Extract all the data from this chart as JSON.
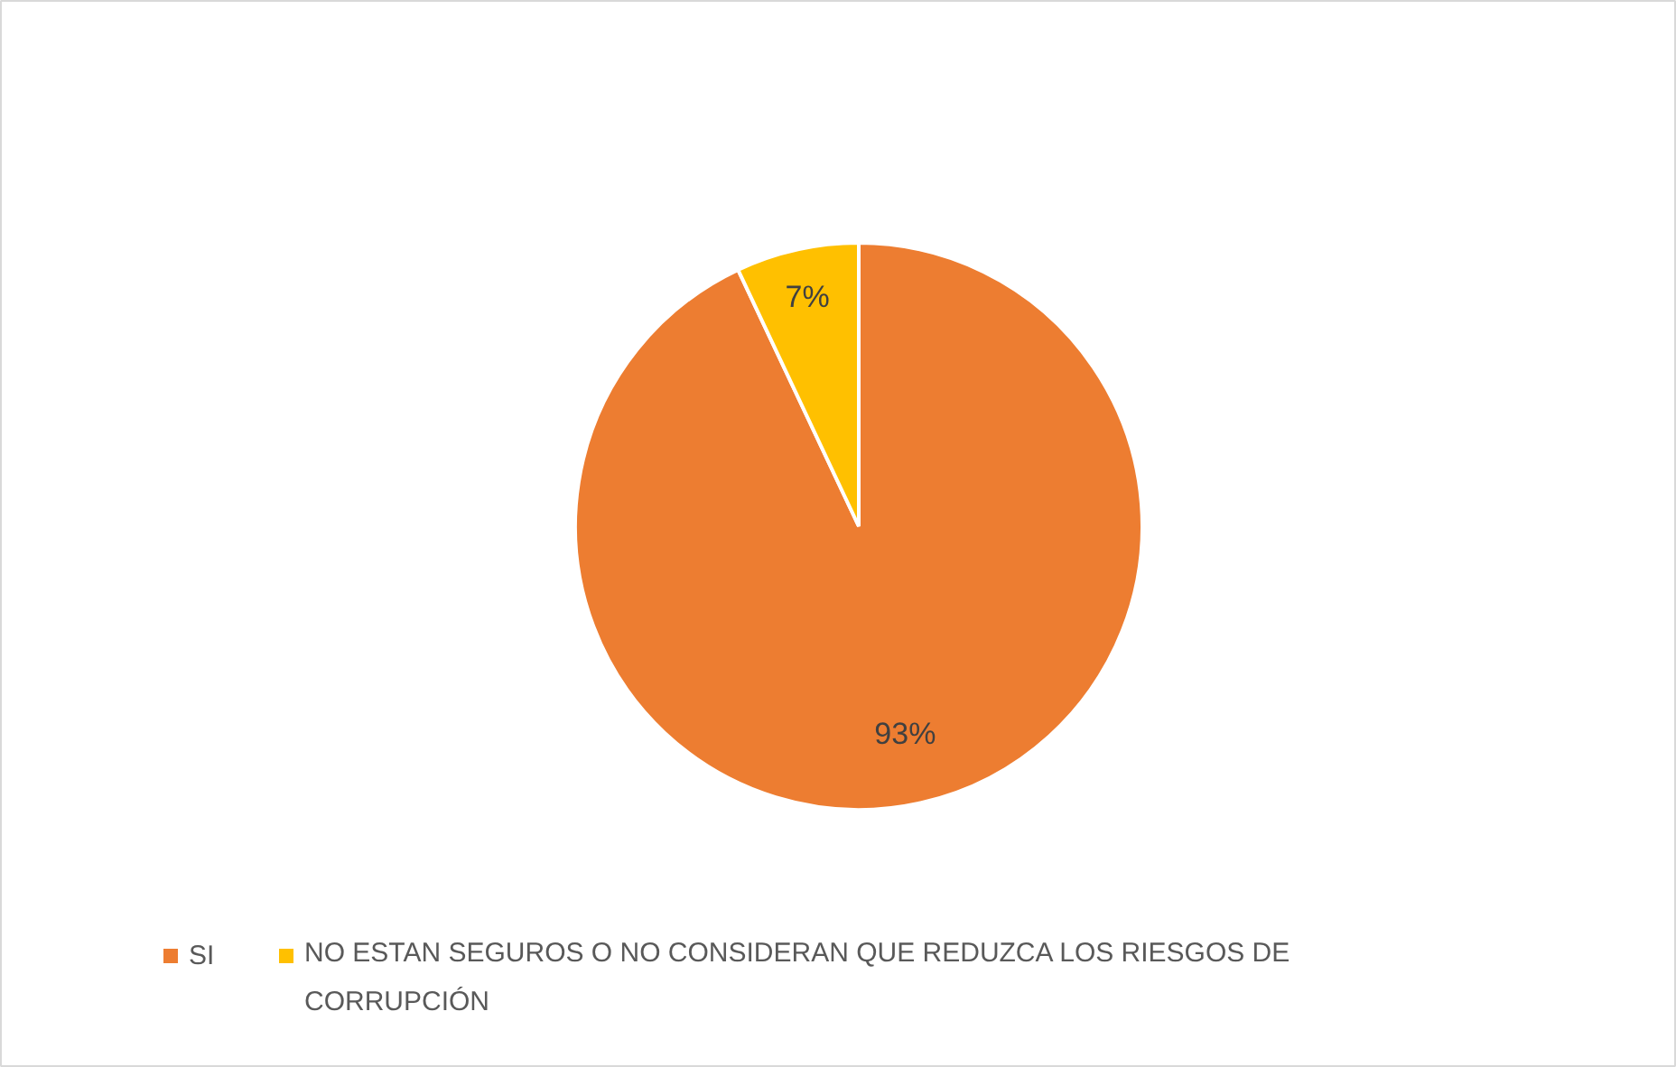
{
  "chart_data": {
    "type": "pie",
    "categories": [
      "SI",
      "NO ESTAN SEGUROS O NO CONSIDERAN QUE REDUZCA LOS RIESGOS DE CORRUPCIÓN"
    ],
    "values": [
      93,
      7
    ],
    "colors": [
      "#ed7d31",
      "#ffc000"
    ],
    "value_labels": [
      "93%",
      "7%"
    ],
    "legend": "bottom"
  }
}
